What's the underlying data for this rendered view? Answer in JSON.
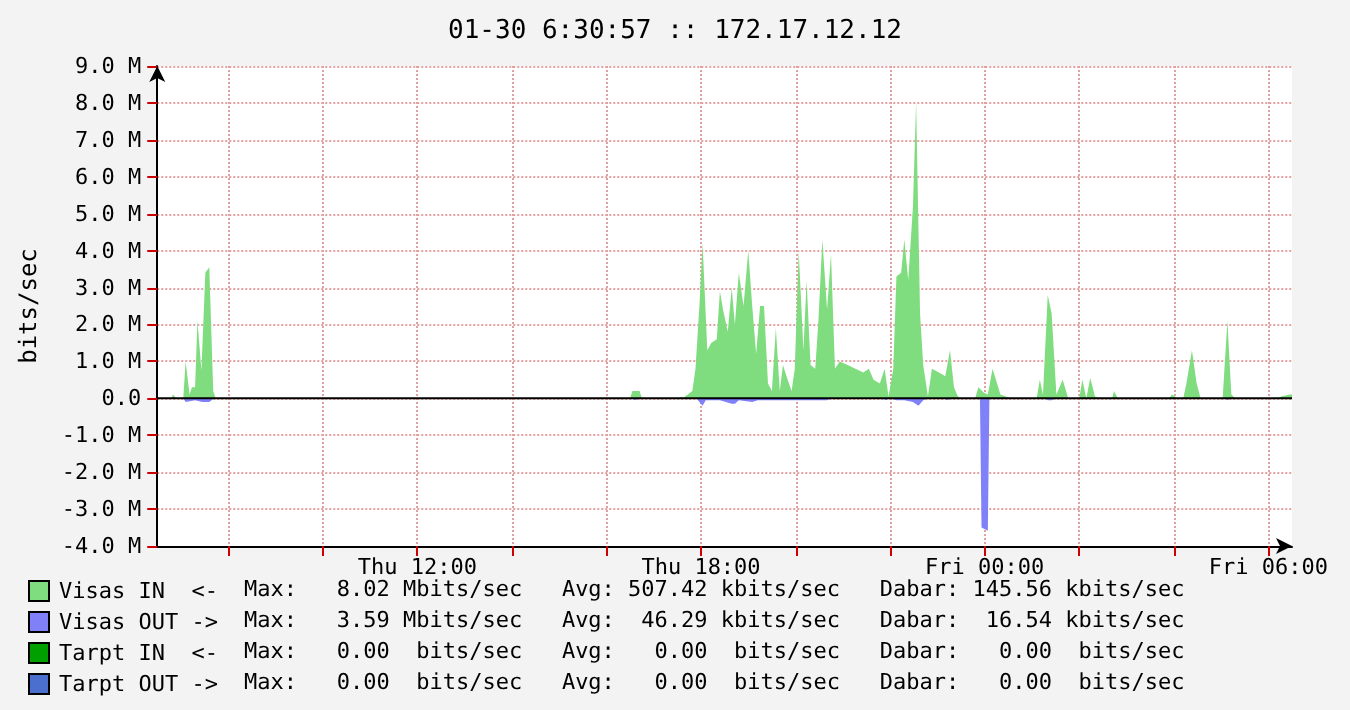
{
  "chart_data": {
    "type": "area",
    "title": "01-30 6:30:57 :: 172.17.12.12",
    "ylabel": "bits/sec",
    "xlim": [
      "--01-29T06:30",
      "--01-30T06:30"
    ],
    "xticks": [
      {
        "value": "--01-29T08:00",
        "label": null
      },
      {
        "value": "--01-29T10:00",
        "label": null
      },
      {
        "value": "--01-29T12:00",
        "label": "Thu 12:00"
      },
      {
        "value": "--01-29T14:00",
        "label": null
      },
      {
        "value": "--01-29T16:00",
        "label": null
      },
      {
        "value": "--01-29T18:00",
        "label": "Thu 18:00"
      },
      {
        "value": "--01-29T20:00",
        "label": null
      },
      {
        "value": "--01-29T22:00",
        "label": null
      },
      {
        "value": "--01-30T00:00",
        "label": "Fri 00:00"
      },
      {
        "value": "--01-30T02:00",
        "label": null
      },
      {
        "value": "--01-30T04:00",
        "label": null
      },
      {
        "value": "--01-30T06:00",
        "label": "Fri 06:00"
      }
    ],
    "ylim": [
      -4,
      9
    ],
    "yticks": [
      {
        "value": -4,
        "label": "-4.0 M"
      },
      {
        "value": -3,
        "label": "-3.0 M"
      },
      {
        "value": -2,
        "label": "-2.0 M"
      },
      {
        "value": -1,
        "label": "-1.0 M"
      },
      {
        "value": 0,
        "label": "0.0"
      },
      {
        "value": 1,
        "label": "1.0 M"
      },
      {
        "value": 2,
        "label": "2.0 M"
      },
      {
        "value": 3,
        "label": "3.0 M"
      },
      {
        "value": 4,
        "label": "4.0 M"
      },
      {
        "value": 5,
        "label": "5.0 M"
      },
      {
        "value": 6,
        "label": "6.0 M"
      },
      {
        "value": 7,
        "label": "7.0 M"
      },
      {
        "value": 8,
        "label": "8.0 M"
      },
      {
        "value": 9,
        "label": "9.0 M"
      }
    ],
    "grid": true,
    "legend": "bottom left",
    "series": [
      {
        "name": "Visas IN  <-",
        "color": "#7fdd7f",
        "x": [
          "--01-29T06:30",
          "--01-29T06:48",
          "--01-29T06:50",
          "--01-29T06:54",
          "--01-29T07:03",
          "--01-29T07:06",
          "--01-29T07:11",
          "--01-29T07:14",
          "--01-29T07:18",
          "--01-29T07:21",
          "--01-29T07:26",
          "--01-29T07:31",
          "--01-29T07:36",
          "--01-29T07:41",
          "--01-29T07:44",
          "--01-29T16:30",
          "--01-29T16:33",
          "--01-29T16:42",
          "--01-29T16:45",
          "--01-29T17:33",
          "--01-29T17:35",
          "--01-29T17:37",
          "--01-29T17:49",
          "--01-29T17:53",
          "--01-29T17:58",
          "--01-29T18:02",
          "--01-29T18:08",
          "--01-29T18:13",
          "--01-29T18:20",
          "--01-29T18:24",
          "--01-29T18:28",
          "--01-29T18:34",
          "--01-29T18:39",
          "--01-29T18:43",
          "--01-29T18:48",
          "--01-29T18:54",
          "--01-29T19:00",
          "--01-29T19:05",
          "--01-29T19:10",
          "--01-29T19:15",
          "--01-29T19:20",
          "--01-29T19:25",
          "--01-29T19:30",
          "--01-29T19:35",
          "--01-29T19:40",
          "--01-29T19:44",
          "--01-29T19:50",
          "--01-29T19:55",
          "--01-29T19:59",
          "--01-29T20:04",
          "--01-29T20:10",
          "--01-29T20:14",
          "--01-29T20:19",
          "--01-29T20:25",
          "--01-29T20:29",
          "--01-29T20:34",
          "--01-29T20:40",
          "--01-29T20:45",
          "--01-29T20:50",
          "--01-29T20:56",
          "--01-29T21:06",
          "--01-29T21:16",
          "--01-29T21:26",
          "--01-29T21:33",
          "--01-29T21:39",
          "--01-29T21:47",
          "--01-29T21:53",
          "--01-29T21:58",
          "--01-29T22:04",
          "--01-29T22:08",
          "--01-29T22:14",
          "--01-29T22:18",
          "--01-29T22:23",
          "--01-29T22:29",
          "--01-29T22:33",
          "--01-29T22:38",
          "--01-29T22:42",
          "--01-29T22:48",
          "--01-29T22:53",
          "--01-29T23:02",
          "--01-29T23:10",
          "--01-29T23:16",
          "--01-29T23:21",
          "--01-29T23:26",
          "--01-29T23:30",
          "--01-29T23:48",
          "--01-29T23:52",
          "--01-29T23:59",
          "--01-30T00:04",
          "--01-30T00:10",
          "--01-30T00:20",
          "--01-30T00:33",
          "--01-30T01:06",
          "--01-30T01:10",
          "--01-30T01:14",
          "--01-30T01:20",
          "--01-30T01:25",
          "--01-30T01:31",
          "--01-30T01:39",
          "--01-30T01:46",
          "--01-30T02:00",
          "--01-30T02:04",
          "--01-30T02:09",
          "--01-30T02:14",
          "--01-30T02:20",
          "--01-30T02:29",
          "--01-30T02:42",
          "--01-30T02:44",
          "--01-30T02:49",
          "--01-30T03:54",
          "--01-30T03:58",
          "--01-30T04:04",
          "--01-30T04:12",
          "--01-30T04:16",
          "--01-30T04:23",
          "--01-30T04:29",
          "--01-30T04:34",
          "--01-30T05:02",
          "--01-30T05:08",
          "--01-30T05:13",
          "--01-30T05:18",
          "--01-30T06:12",
          "--01-30T06:16",
          "--01-30T06:27",
          "--01-30T06:30"
        ],
        "values": [
          0,
          0,
          0.1,
          0,
          0,
          1.0,
          0.1,
          0.3,
          0.3,
          2.1,
          0.75,
          3.4,
          3.55,
          0.2,
          0,
          0,
          0.2,
          0.2,
          0,
          0,
          0.05,
          0,
          0.2,
          0.8,
          2.5,
          4.2,
          1.3,
          1.5,
          1.6,
          2.9,
          2.4,
          1.8,
          3.0,
          2.0,
          3.4,
          2.5,
          4.0,
          2.5,
          1.2,
          2.5,
          2.5,
          0.4,
          0.2,
          1.9,
          0.2,
          0.9,
          0.5,
          0.2,
          0.8,
          4.0,
          1.3,
          3.2,
          0.9,
          0.8,
          2.1,
          4.3,
          2.4,
          3.9,
          0.8,
          1.0,
          0.9,
          0.8,
          0.7,
          0.8,
          0.5,
          0.4,
          0.8,
          0.05,
          0.8,
          3.3,
          3.4,
          4.3,
          3.2,
          5.2,
          8.02,
          2.3,
          0.9,
          0.05,
          0.8,
          0.7,
          0.6,
          1.3,
          0.3,
          0.05,
          0,
          0,
          0.3,
          0.15,
          0.1,
          0.8,
          0.1,
          0,
          0,
          0.5,
          0.1,
          2.8,
          2.3,
          0.1,
          0.5,
          0,
          0,
          0.5,
          0,
          0.55,
          0.05,
          0,
          0,
          0.2,
          0,
          0,
          0.1,
          0,
          0,
          0.4,
          1.3,
          0.4,
          0,
          0,
          2.1,
          0.1,
          0,
          0,
          0.05,
          0.1,
          0.1
        ]
      },
      {
        "name": "Visas OUT ->",
        "color": "#8080f8",
        "x": [
          "--01-29T06:30",
          "--01-29T07:03",
          "--01-29T07:06",
          "--01-29T07:18",
          "--01-29T07:27",
          "--01-29T07:36",
          "--01-29T07:42",
          "--01-29T16:33",
          "--01-29T16:36",
          "--01-29T16:42",
          "--01-29T17:54",
          "--01-29T17:58",
          "--01-29T18:02",
          "--01-29T18:06",
          "--01-29T18:24",
          "--01-29T18:39",
          "--01-29T18:43",
          "--01-29T18:48",
          "--01-29T19:05",
          "--01-29T19:12",
          "--01-29T19:30",
          "--01-29T19:40",
          "--01-29T20:00",
          "--01-29T20:18",
          "--01-29T20:30",
          "--01-29T20:40",
          "--01-29T20:45",
          "--01-29T21:51",
          "--01-29T21:54",
          "--01-29T22:00",
          "--01-29T22:08",
          "--01-29T22:18",
          "--01-29T22:29",
          "--01-29T22:36",
          "--01-29T22:42",
          "--01-29T22:48",
          "--01-29T23:09",
          "--01-29T23:12",
          "--01-29T23:18",
          "--01-29T23:54",
          "--01-29T23:56",
          "--01-30T00:04",
          "--01-30T00:06",
          "--01-30T01:18",
          "--01-30T01:20",
          "--01-30T01:25",
          "--01-30T01:30",
          "--01-30T05:06",
          "--01-30T05:08",
          "--01-30T05:12",
          "--01-30T06:30"
        ],
        "values": [
          0,
          0,
          -0.1,
          -0.05,
          -0.1,
          -0.1,
          0,
          0,
          -0.05,
          0,
          0,
          -0.1,
          -0.2,
          -0.05,
          -0.05,
          -0.15,
          -0.15,
          -0.05,
          -0.1,
          -0.05,
          -0.05,
          -0.05,
          -0.05,
          -0.05,
          -0.05,
          -0.05,
          0,
          0,
          -0.05,
          0,
          -0.05,
          -0.05,
          -0.1,
          -0.2,
          -0.05,
          0,
          0,
          -0.05,
          0,
          0,
          -3.5,
          -3.59,
          0,
          0,
          -0.05,
          -0.05,
          0,
          0,
          -0.05,
          0,
          0
        ]
      },
      {
        "name": "Tarpt IN  <-",
        "color": "#00a000"
      },
      {
        "name": "Tarpt OUT ->",
        "color": "#4a6fcf"
      }
    ],
    "annotations": [
      "Max:   8.02 Mbits/sec   Avg: 507.42 kbits/sec   Dabar: 145.56 kbits/sec",
      "Max:   3.59 Mbits/sec   Avg:  46.29 kbits/sec   Dabar:  16.54 kbits/sec",
      "Max:   0.00  bits/sec   Avg:   0.00  bits/sec   Dabar:   0.00  bits/sec",
      "Max:   0.00  bits/sec   Avg:   0.00  bits/sec   Dabar:   0.00  bits/sec"
    ]
  }
}
